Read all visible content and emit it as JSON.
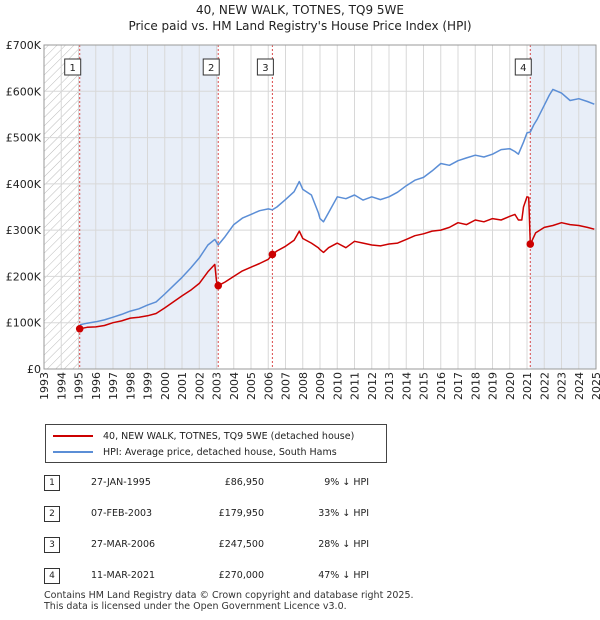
{
  "title_line1": "40, NEW WALK, TOTNES, TQ9 5WE",
  "title_line2": "Price paid vs. HM Land Registry's House Price Index (HPI)",
  "colors": {
    "price_paid": "#cc0000",
    "hpi": "#5b8ed6",
    "shade": "#e8eef8",
    "event_line": "#cc0000"
  },
  "legend": {
    "price_paid_label": "40, NEW WALK, TOTNES, TQ9 5WE (detached house)",
    "hpi_label": "HPI: Average price, detached house, South Hams"
  },
  "events": [
    {
      "num": "1",
      "date": "27-JAN-1995",
      "price": "£86,950",
      "pct": "9% ↓ HPI"
    },
    {
      "num": "2",
      "date": "07-FEB-2003",
      "price": "£179,950",
      "pct": "33% ↓ HPI"
    },
    {
      "num": "3",
      "date": "27-MAR-2006",
      "price": "£247,500",
      "pct": "28% ↓ HPI"
    },
    {
      "num": "4",
      "date": "11-MAR-2021",
      "price": "£270,000",
      "pct": "47% ↓ HPI"
    }
  ],
  "footer": {
    "line1": "Contains HM Land Registry data © Crown copyright and database right 2025.",
    "line2": "This data is licensed under the Open Government Licence v3.0."
  },
  "chart_data": {
    "type": "line",
    "title": "Price paid vs. HM Land Registry's House Price Index (HPI)",
    "xlabel": "",
    "ylabel": "",
    "xlim": [
      1993,
      2025
    ],
    "ylim": [
      0,
      700000
    ],
    "x_ticks": [
      1993,
      1994,
      1995,
      1996,
      1997,
      1998,
      1999,
      2000,
      2001,
      2002,
      2003,
      2004,
      2005,
      2006,
      2007,
      2008,
      2009,
      2010,
      2011,
      2012,
      2013,
      2014,
      2015,
      2016,
      2017,
      2018,
      2019,
      2020,
      2021,
      2022,
      2023,
      2024,
      2025
    ],
    "y_ticks": [
      {
        "value": 0,
        "label": "£0"
      },
      {
        "value": 100000,
        "label": "£100K"
      },
      {
        "value": 200000,
        "label": "£200K"
      },
      {
        "value": 300000,
        "label": "£300K"
      },
      {
        "value": 400000,
        "label": "£400K"
      },
      {
        "value": 500000,
        "label": "£500K"
      },
      {
        "value": 600000,
        "label": "£600K"
      },
      {
        "value": 700000,
        "label": "£700K"
      }
    ],
    "hatched_before": 1995.07,
    "shaded_ranges": [
      [
        1995.07,
        2003.1
      ],
      [
        2021.19,
        2025
      ]
    ],
    "series": [
      {
        "name": "40, NEW WALK, TOTNES, TQ9 5WE (detached house)",
        "x": [
          1995.07,
          1995.5,
          1996.0,
          1996.5,
          1997.0,
          1997.5,
          1998.0,
          1998.5,
          1999.0,
          1999.5,
          2000.0,
          2000.5,
          2001.0,
          2001.5,
          2002.0,
          2002.5,
          2002.9,
          2003.0,
          2003.1,
          2003.5,
          2004.0,
          2004.5,
          2005.0,
          2005.5,
          2006.0,
          2006.24,
          2006.5,
          2007.0,
          2007.5,
          2007.8,
          2008.0,
          2008.5,
          2008.9,
          2009.0,
          2009.2,
          2009.5,
          2010.0,
          2010.5,
          2011.0,
          2011.5,
          2012.0,
          2012.5,
          2013.0,
          2013.5,
          2014.0,
          2014.5,
          2015.0,
          2015.5,
          2016.0,
          2016.5,
          2017.0,
          2017.5,
          2018.0,
          2018.5,
          2019.0,
          2019.5,
          2020.0,
          2020.3,
          2020.5,
          2020.7,
          2020.8,
          2021.0,
          2021.1,
          2021.19,
          2021.3,
          2021.5,
          2022.0,
          2022.5,
          2023.0,
          2023.5,
          2024.0,
          2024.5,
          2024.9
        ],
        "values": [
          86950,
          90000,
          91000,
          94000,
          100000,
          104000,
          110000,
          112000,
          115000,
          120000,
          132000,
          145000,
          158000,
          170000,
          185000,
          210000,
          226000,
          190000,
          179950,
          188000,
          200000,
          212000,
          220000,
          228000,
          237000,
          247500,
          255000,
          265000,
          278000,
          298000,
          282000,
          272000,
          262000,
          258000,
          252000,
          262000,
          272000,
          262000,
          276000,
          272000,
          268000,
          266000,
          270000,
          272000,
          280000,
          288000,
          292000,
          298000,
          300000,
          306000,
          316000,
          312000,
          322000,
          318000,
          325000,
          322000,
          330000,
          334000,
          322000,
          322000,
          350000,
          372000,
          371000,
          270000,
          278000,
          294000,
          306000,
          310000,
          316000,
          312000,
          310000,
          306000,
          302000
        ]
      },
      {
        "name": "HPI: Average price, detached house, South Hams",
        "x": [
          1995.07,
          1995.5,
          1996.0,
          1996.5,
          1997.0,
          1997.5,
          1998.0,
          1998.5,
          1999.0,
          1999.5,
          2000.0,
          2000.5,
          2001.0,
          2001.5,
          2002.0,
          2002.5,
          2002.9,
          2003.1,
          2003.5,
          2004.0,
          2004.5,
          2005.0,
          2005.5,
          2006.0,
          2006.24,
          2006.5,
          2007.0,
          2007.5,
          2007.8,
          2008.0,
          2008.5,
          2008.9,
          2009.0,
          2009.2,
          2009.5,
          2010.0,
          2010.5,
          2011.0,
          2011.5,
          2012.0,
          2012.5,
          2013.0,
          2013.5,
          2014.0,
          2014.5,
          2015.0,
          2015.5,
          2016.0,
          2016.5,
          2017.0,
          2017.5,
          2018.0,
          2018.5,
          2019.0,
          2019.5,
          2020.0,
          2020.3,
          2020.5,
          2020.8,
          2021.0,
          2021.19,
          2021.4,
          2021.6,
          2022.0,
          2022.3,
          2022.5,
          2023.0,
          2023.5,
          2024.0,
          2024.5,
          2024.9
        ],
        "values": [
          95500,
          99000,
          102000,
          106000,
          112000,
          118000,
          125000,
          130000,
          138000,
          145000,
          162000,
          180000,
          198000,
          218000,
          240000,
          268000,
          280000,
          268000,
          286000,
          312000,
          326000,
          334000,
          342000,
          346000,
          344000,
          350000,
          366000,
          383000,
          405000,
          388000,
          376000,
          338000,
          325000,
          318000,
          338000,
          372000,
          368000,
          376000,
          365000,
          372000,
          366000,
          372000,
          382000,
          396000,
          408000,
          414000,
          428000,
          444000,
          440000,
          450000,
          456000,
          462000,
          458000,
          464000,
          474000,
          476000,
          470000,
          464000,
          490000,
          510000,
          512000,
          528000,
          540000,
          570000,
          592000,
          604000,
          596000,
          580000,
          584000,
          578000,
          572000
        ]
      }
    ],
    "events": [
      {
        "label": "1",
        "x": 1995.07,
        "value": 86950
      },
      {
        "label": "2",
        "x": 2003.1,
        "value": 179950
      },
      {
        "label": "3",
        "x": 2006.24,
        "value": 247500
      },
      {
        "label": "4",
        "x": 2021.19,
        "value": 270000
      }
    ]
  }
}
